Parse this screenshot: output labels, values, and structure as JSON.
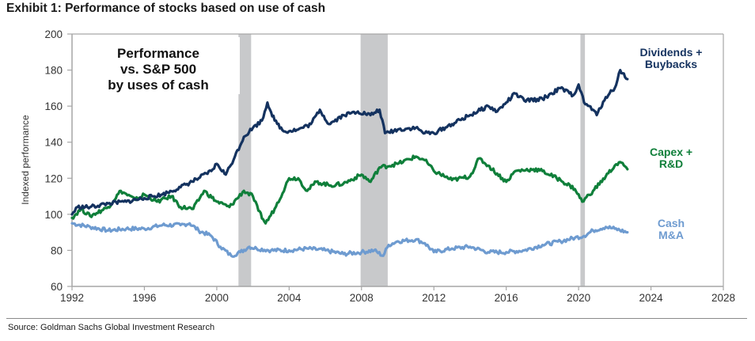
{
  "header": {
    "title": "Exhibit 1: Performance of stocks based on use of cash"
  },
  "footer": {
    "source": "Source: Goldman Sachs Global Investment Research"
  },
  "chart_data": {
    "type": "line",
    "title": "Exhibit 1: Performance of stocks based on use of cash",
    "annotation": [
      "Performance",
      "vs. S&P 500",
      "by uses of cash"
    ],
    "xlabel": "",
    "ylabel": "Indexed performance",
    "xlim": [
      1992,
      2028
    ],
    "ylim": [
      60,
      200
    ],
    "x_ticks": [
      1992,
      1996,
      2000,
      2004,
      2008,
      2012,
      2016,
      2020,
      2024,
      2028
    ],
    "x_tick_labels": [
      "1992",
      "1996",
      "2000",
      "2004",
      "2008",
      "2012",
      "2016",
      "2020",
      "2024",
      "2028"
    ],
    "y_ticks": [
      60,
      80,
      100,
      120,
      140,
      160,
      180,
      200
    ],
    "y_tick_labels": [
      "60",
      "80",
      "100",
      "120",
      "140",
      "160",
      "180",
      "200"
    ],
    "grid": false,
    "legend": "direct-labels-right",
    "shaded_periods": [
      {
        "name": "recession-2001",
        "start": 2001.2,
        "end": 2001.9
      },
      {
        "name": "recession-2008",
        "start": 2007.95,
        "end": 2009.45
      },
      {
        "name": "recession-2020",
        "start": 2020.1,
        "end": 2020.35
      }
    ],
    "shade_color": "#c8c9cb",
    "series": [
      {
        "name": "Dividends + Buybacks",
        "label_lines": [
          "Dividends +",
          "Buybacks"
        ],
        "color": "#14325f",
        "x": [
          1992,
          1992.3,
          1993,
          1994,
          1995,
          1996,
          1997,
          1998,
          1999,
          1999.7,
          2000,
          2000.5,
          2001,
          2001.5,
          2002,
          2002.5,
          2002.8,
          2003.2,
          2003.7,
          2004.5,
          2005.2,
          2005.7,
          2006.2,
          2007,
          2007.8,
          2008.5,
          2009,
          2009.3,
          2010,
          2011,
          2011.5,
          2012,
          2013,
          2014,
          2015,
          2015.5,
          2016,
          2016.5,
          2017,
          2018,
          2019,
          2019.7,
          2020,
          2020.3,
          2020.8,
          2021,
          2021.5,
          2022,
          2022.3,
          2022.7
        ],
        "values": [
          100,
          104,
          104,
          106,
          107,
          109,
          111,
          115,
          120,
          124,
          128,
          122,
          132,
          143,
          148,
          152,
          162,
          152,
          146,
          147,
          150,
          158,
          150,
          155,
          157,
          155,
          158,
          145,
          147,
          148,
          145,
          145,
          150,
          155,
          160,
          157,
          162,
          167,
          163,
          164,
          170,
          166,
          172,
          162,
          158,
          155,
          165,
          170,
          180,
          175
        ]
      },
      {
        "name": "Capex + R&D",
        "label_lines": [
          "Capex +",
          "R&D"
        ],
        "color": "#0f7f3a",
        "x": [
          1992,
          1992.5,
          1993,
          1994,
          1994.7,
          1995.5,
          1996,
          1996.7,
          1997.5,
          1998,
          1998.7,
          1999.3,
          2000,
          2000.7,
          2001.5,
          2002,
          2002.3,
          2002.7,
          2003.2,
          2004,
          2004.5,
          2005,
          2005.5,
          2006.3,
          2007,
          2008,
          2008.5,
          2009,
          2010,
          2011,
          2011.5,
          2012,
          2013,
          2014,
          2014.5,
          2015,
          2016,
          2016.5,
          2017.5,
          2018,
          2019,
          2019.8,
          2020.2,
          2020.8,
          2021.5,
          2022,
          2022.3,
          2022.7
        ],
        "values": [
          98,
          103,
          99,
          104,
          113,
          108,
          111,
          107,
          110,
          104,
          103,
          113,
          107,
          104,
          113,
          110,
          102,
          95,
          103,
          120,
          120,
          113,
          118,
          116,
          117,
          122,
          118,
          126,
          128,
          132,
          130,
          124,
          119,
          121,
          131,
          127,
          118,
          124,
          125,
          124,
          119,
          114,
          107,
          113,
          121,
          127,
          129,
          125
        ]
      },
      {
        "name": "Cash M&A",
        "label_lines": [
          "Cash",
          "M&A"
        ],
        "color": "#6e9bd0",
        "x": [
          1992,
          1993,
          1994,
          1995,
          1996,
          1997,
          1998,
          1998.5,
          1999,
          1999.7,
          2000.2,
          2000.8,
          2001.3,
          2001.8,
          2002.2,
          2003,
          2004,
          2005,
          2006,
          2007,
          2008,
          2008.7,
          2009.2,
          2009.5,
          2010,
          2011,
          2011.5,
          2012,
          2013,
          2014,
          2015,
          2016,
          2017,
          2018,
          2019,
          2019.8,
          2020.3,
          2020.8,
          2021.5,
          2022,
          2022.7
        ],
        "values": [
          95,
          93,
          91,
          92,
          92,
          94,
          94,
          95,
          91,
          88,
          82,
          77,
          79,
          82,
          81,
          80,
          80,
          81,
          80,
          78,
          79,
          80,
          77,
          83,
          85,
          86,
          84,
          79,
          81,
          82,
          79,
          79,
          80,
          83,
          85,
          87,
          88,
          91,
          93,
          92,
          90
        ]
      }
    ]
  }
}
